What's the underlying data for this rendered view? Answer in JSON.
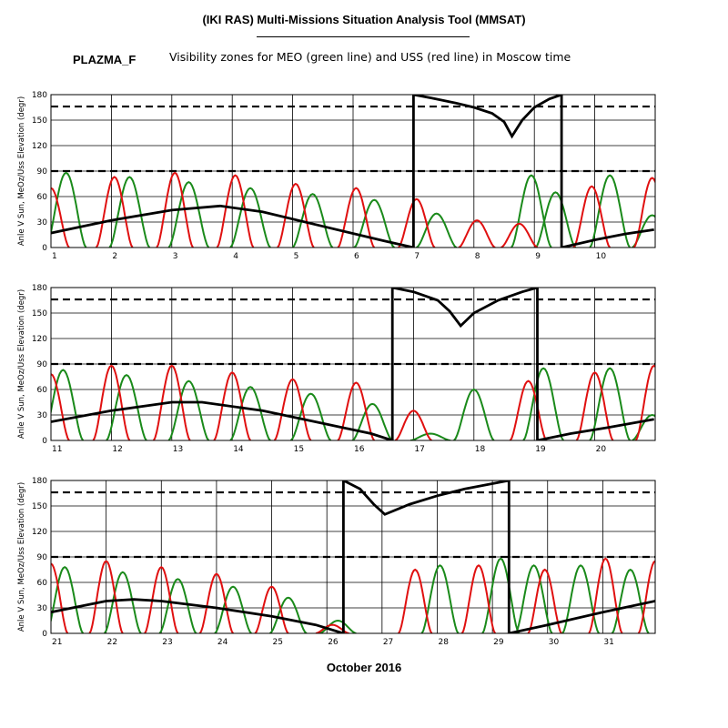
{
  "header": {
    "title": "(IKI RAS) Multi-Missions Situation Analysis Tool (MMSAT)",
    "program": "PLAZMA_F",
    "subtitle": "Visibility zones for MEO (green line) and USS (red line) in Moscow time"
  },
  "x_caption": "October 2016",
  "colors": {
    "meo": "#1a8a1a",
    "uss": "#e01010",
    "sun": "#000000",
    "grid": "#000000"
  },
  "chart_data": [
    {
      "type": "line",
      "ylabel": "Anle V Sun, MeOz/Uss Elevation (degr)",
      "xlim": [
        1,
        11
      ],
      "ylim": [
        0,
        180
      ],
      "x_ticks": [
        "1",
        "2",
        "3",
        "4",
        "5",
        "6",
        "7",
        "8",
        "9",
        "10"
      ],
      "y_ticks": [
        "0",
        "30",
        "60",
        "90",
        "120",
        "150",
        "180"
      ],
      "reference_lines": [
        90,
        166
      ],
      "sun_angle": {
        "x": [
          1.0,
          2.0,
          3.0,
          3.8,
          4.5,
          5.5,
          6.5,
          7.0,
          7.0,
          7.3,
          7.7,
          8.0,
          8.3,
          8.5,
          8.63,
          8.8,
          9.0,
          9.25,
          9.45,
          9.45,
          10.0,
          10.5,
          10.98
        ],
        "y": [
          17,
          32,
          44,
          49,
          42,
          25,
          8,
          0,
          180,
          176,
          170,
          165,
          158,
          148,
          131,
          150,
          165,
          175,
          180,
          0,
          9,
          16,
          21
        ]
      },
      "meo_passes": [
        {
          "peak": 1.25,
          "y": 88
        },
        {
          "peak": 2.3,
          "y": 83
        },
        {
          "peak": 3.28,
          "y": 77
        },
        {
          "peak": 4.3,
          "y": 70
        },
        {
          "peak": 5.33,
          "y": 63
        },
        {
          "peak": 6.35,
          "y": 56
        },
        {
          "peak": 7.38,
          "y": 40
        },
        {
          "peak": 8.95,
          "y": 85
        },
        {
          "peak": 9.35,
          "y": 65
        },
        {
          "peak": 10.25,
          "y": 85
        },
        {
          "peak": 10.95,
          "y": 38
        }
      ],
      "uss_passes": [
        {
          "peak": 1.0,
          "y": 70
        },
        {
          "peak": 2.05,
          "y": 83
        },
        {
          "peak": 3.05,
          "y": 88
        },
        {
          "peak": 4.05,
          "y": 85
        },
        {
          "peak": 5.05,
          "y": 75
        },
        {
          "peak": 6.05,
          "y": 70
        },
        {
          "peak": 7.05,
          "y": 57
        },
        {
          "peak": 8.05,
          "y": 32
        },
        {
          "peak": 8.75,
          "y": 28
        },
        {
          "peak": 9.95,
          "y": 72
        },
        {
          "peak": 10.95,
          "y": 82
        }
      ]
    },
    {
      "type": "line",
      "ylabel": "Anle V Sun, MeOz/Uss Elevation (degr)",
      "xlim": [
        11,
        21
      ],
      "ylim": [
        0,
        180
      ],
      "x_ticks": [
        "11",
        "12",
        "13",
        "14",
        "15",
        "16",
        "17",
        "18",
        "19",
        "20"
      ],
      "y_ticks": [
        "0",
        "30",
        "60",
        "90",
        "120",
        "150",
        "180"
      ],
      "reference_lines": [
        90,
        166
      ],
      "sun_angle": {
        "x": [
          11.0,
          12.0,
          13.0,
          13.5,
          14.5,
          15.5,
          16.3,
          16.65,
          16.65,
          17.0,
          17.4,
          17.6,
          17.78,
          18.0,
          18.4,
          18.8,
          19.05,
          19.05,
          19.6,
          20.2,
          20.98
        ],
        "y": [
          22,
          35,
          45,
          45,
          35,
          20,
          8,
          0,
          180,
          175,
          165,
          152,
          135,
          150,
          165,
          175,
          180,
          0,
          8,
          15,
          25
        ]
      },
      "meo_passes": [
        {
          "peak": 11.2,
          "y": 83
        },
        {
          "peak": 12.25,
          "y": 77
        },
        {
          "peak": 13.28,
          "y": 70
        },
        {
          "peak": 14.3,
          "y": 63
        },
        {
          "peak": 15.3,
          "y": 55
        },
        {
          "peak": 16.32,
          "y": 43
        },
        {
          "peak": 17.28,
          "y": 8
        },
        {
          "peak": 18.0,
          "y": 60
        },
        {
          "peak": 19.15,
          "y": 85
        },
        {
          "peak": 20.25,
          "y": 85
        },
        {
          "peak": 20.95,
          "y": 30
        }
      ],
      "uss_passes": [
        {
          "peak": 11.0,
          "y": 78
        },
        {
          "peak": 12.0,
          "y": 88
        },
        {
          "peak": 13.0,
          "y": 88
        },
        {
          "peak": 14.0,
          "y": 80
        },
        {
          "peak": 15.0,
          "y": 72
        },
        {
          "peak": 16.05,
          "y": 68
        },
        {
          "peak": 17.0,
          "y": 35
        },
        {
          "peak": 18.9,
          "y": 70
        },
        {
          "peak": 20.0,
          "y": 80
        },
        {
          "peak": 20.98,
          "y": 88
        }
      ]
    },
    {
      "type": "line",
      "ylabel": "Anle V Sun, MeOz/Uss Elevation (degr)",
      "xlim": [
        21,
        31.95
      ],
      "ylim": [
        0,
        180
      ],
      "x_ticks": [
        "21",
        "22",
        "23",
        "24",
        "25",
        "26",
        "27",
        "28",
        "29",
        "30",
        "31"
      ],
      "y_ticks": [
        "0",
        "30",
        "60",
        "90",
        "120",
        "150",
        "180"
      ],
      "reference_lines": [
        90,
        166
      ],
      "sun_angle": {
        "x": [
          21.0,
          22.0,
          22.5,
          23.0,
          24.0,
          25.0,
          25.8,
          26.3,
          26.3,
          26.6,
          26.85,
          27.05,
          27.5,
          28.0,
          28.5,
          29.3,
          29.3,
          30.0,
          31.0,
          31.95
        ],
        "y": [
          25,
          38,
          40,
          38,
          30,
          20,
          10,
          0,
          180,
          170,
          152,
          140,
          152,
          162,
          170,
          180,
          0,
          10,
          25,
          38
        ]
      },
      "meo_passes": [
        {
          "peak": 21.25,
          "y": 78
        },
        {
          "peak": 22.3,
          "y": 72
        },
        {
          "peak": 23.3,
          "y": 64
        },
        {
          "peak": 24.3,
          "y": 55
        },
        {
          "peak": 25.3,
          "y": 42
        },
        {
          "peak": 26.2,
          "y": 15
        },
        {
          "peak": 28.05,
          "y": 80
        },
        {
          "peak": 29.15,
          "y": 88
        },
        {
          "peak": 29.75,
          "y": 80
        },
        {
          "peak": 30.6,
          "y": 80
        },
        {
          "peak": 31.5,
          "y": 75
        }
      ],
      "uss_passes": [
        {
          "peak": 21.0,
          "y": 82
        },
        {
          "peak": 22.0,
          "y": 85
        },
        {
          "peak": 23.0,
          "y": 78
        },
        {
          "peak": 24.0,
          "y": 70
        },
        {
          "peak": 25.0,
          "y": 55
        },
        {
          "peak": 26.1,
          "y": 10
        },
        {
          "peak": 27.6,
          "y": 75
        },
        {
          "peak": 28.75,
          "y": 80
        },
        {
          "peak": 29.95,
          "y": 75
        },
        {
          "peak": 31.05,
          "y": 88
        },
        {
          "peak": 31.95,
          "y": 85
        }
      ]
    }
  ]
}
